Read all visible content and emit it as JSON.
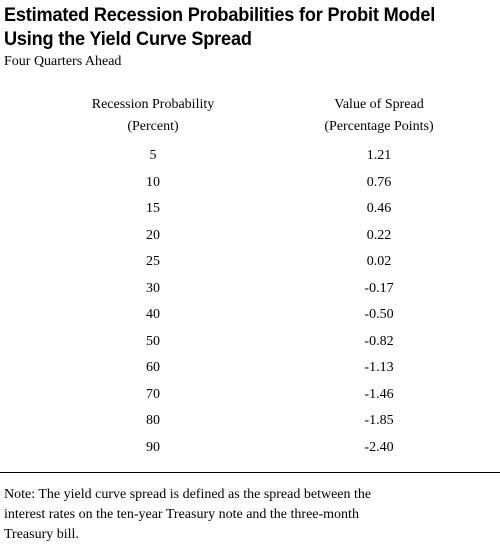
{
  "title": {
    "line1": "Estimated Recession Probabilities for Probit Model",
    "line2": "Using the Yield Curve Spread"
  },
  "subtitle": "Four Quarters Ahead",
  "columns": {
    "probability": {
      "line1": "Recession Probability",
      "line2": "(Percent)"
    },
    "spread": {
      "line1": "Value of Spread",
      "line2": "(Percentage Points)"
    }
  },
  "rows": [
    {
      "probability": "5",
      "spread": "1.21"
    },
    {
      "probability": "10",
      "spread": "0.76"
    },
    {
      "probability": "15",
      "spread": "0.46"
    },
    {
      "probability": "20",
      "spread": "0.22"
    },
    {
      "probability": "25",
      "spread": "0.02"
    },
    {
      "probability": "30",
      "spread": "-0.17"
    },
    {
      "probability": "40",
      "spread": "-0.50"
    },
    {
      "probability": "50",
      "spread": "-0.82"
    },
    {
      "probability": "60",
      "spread": "-1.13"
    },
    {
      "probability": "70",
      "spread": "-1.46"
    },
    {
      "probability": "80",
      "spread": "-1.85"
    },
    {
      "probability": "90",
      "spread": "-2.40"
    }
  ],
  "note": {
    "line1": "Note:  The yield curve spread is defined as the spread between the",
    "line2": "interest rates on the ten-year Treasury note and the three-month",
    "line3": "Treasury bill."
  }
}
